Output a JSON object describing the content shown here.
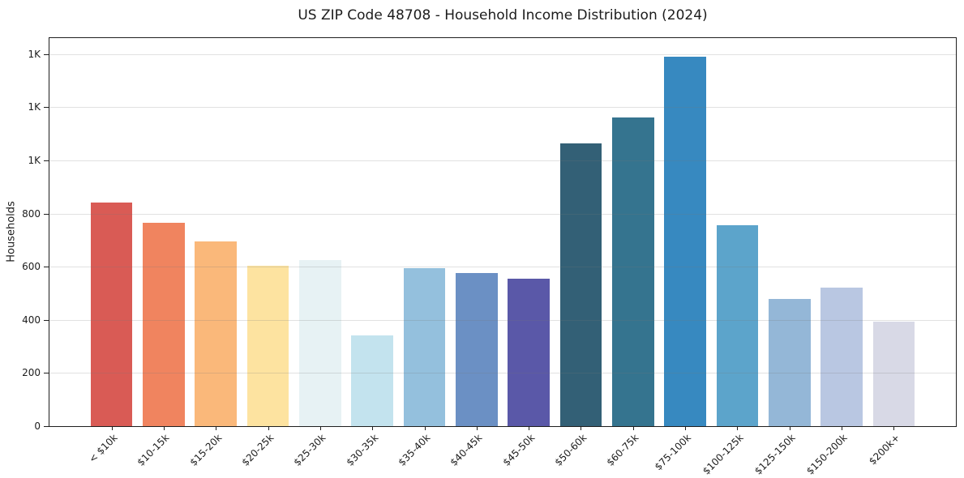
{
  "chart": {
    "title": "US ZIP Code 48708 - Household Income Distribution (2024)",
    "ylabel": "Households"
  },
  "chart_data": {
    "type": "bar",
    "title": "US ZIP Code 48708 - Household Income Distribution (2024)",
    "xlabel": "",
    "ylabel": "Households",
    "categories": [
      "< $10k",
      "$10-15k",
      "$15-20k",
      "$20-25k",
      "$25-30k",
      "$30-35k",
      "$35-40k",
      "$40-45k",
      "$45-50k",
      "$50-60k",
      "$60-75k",
      "$75-100k",
      "$100-125k",
      "$125-150k",
      "$150-200k",
      "$200k+"
    ],
    "values": [
      840,
      765,
      695,
      605,
      625,
      342,
      595,
      575,
      555,
      1065,
      1160,
      1390,
      755,
      478,
      520,
      393
    ],
    "bar_colors": [
      "#d95b55",
      "#f0845f",
      "#fab87a",
      "#fde3a0",
      "#e7f2f4",
      "#c3e3ee",
      "#94c0dd",
      "#6b90c4",
      "#5a58a8",
      "#336076",
      "#35748f",
      "#3789c0",
      "#5ca4cb",
      "#94b7d7",
      "#b9c7e2",
      "#d8d9e6"
    ],
    "ylim": [
      0,
      1460
    ],
    "yticks": [
      {
        "value": 0,
        "label": "0"
      },
      {
        "value": 200,
        "label": "200"
      },
      {
        "value": 400,
        "label": "400"
      },
      {
        "value": 600,
        "label": "600"
      },
      {
        "value": 800,
        "label": "800"
      },
      {
        "value": 1000,
        "label": "1K"
      },
      {
        "value": 1200,
        "label": "1K"
      },
      {
        "value": 1400,
        "label": "1K"
      }
    ],
    "grid": "horizontal",
    "legend": "none",
    "bar_width_fraction": 0.8
  }
}
